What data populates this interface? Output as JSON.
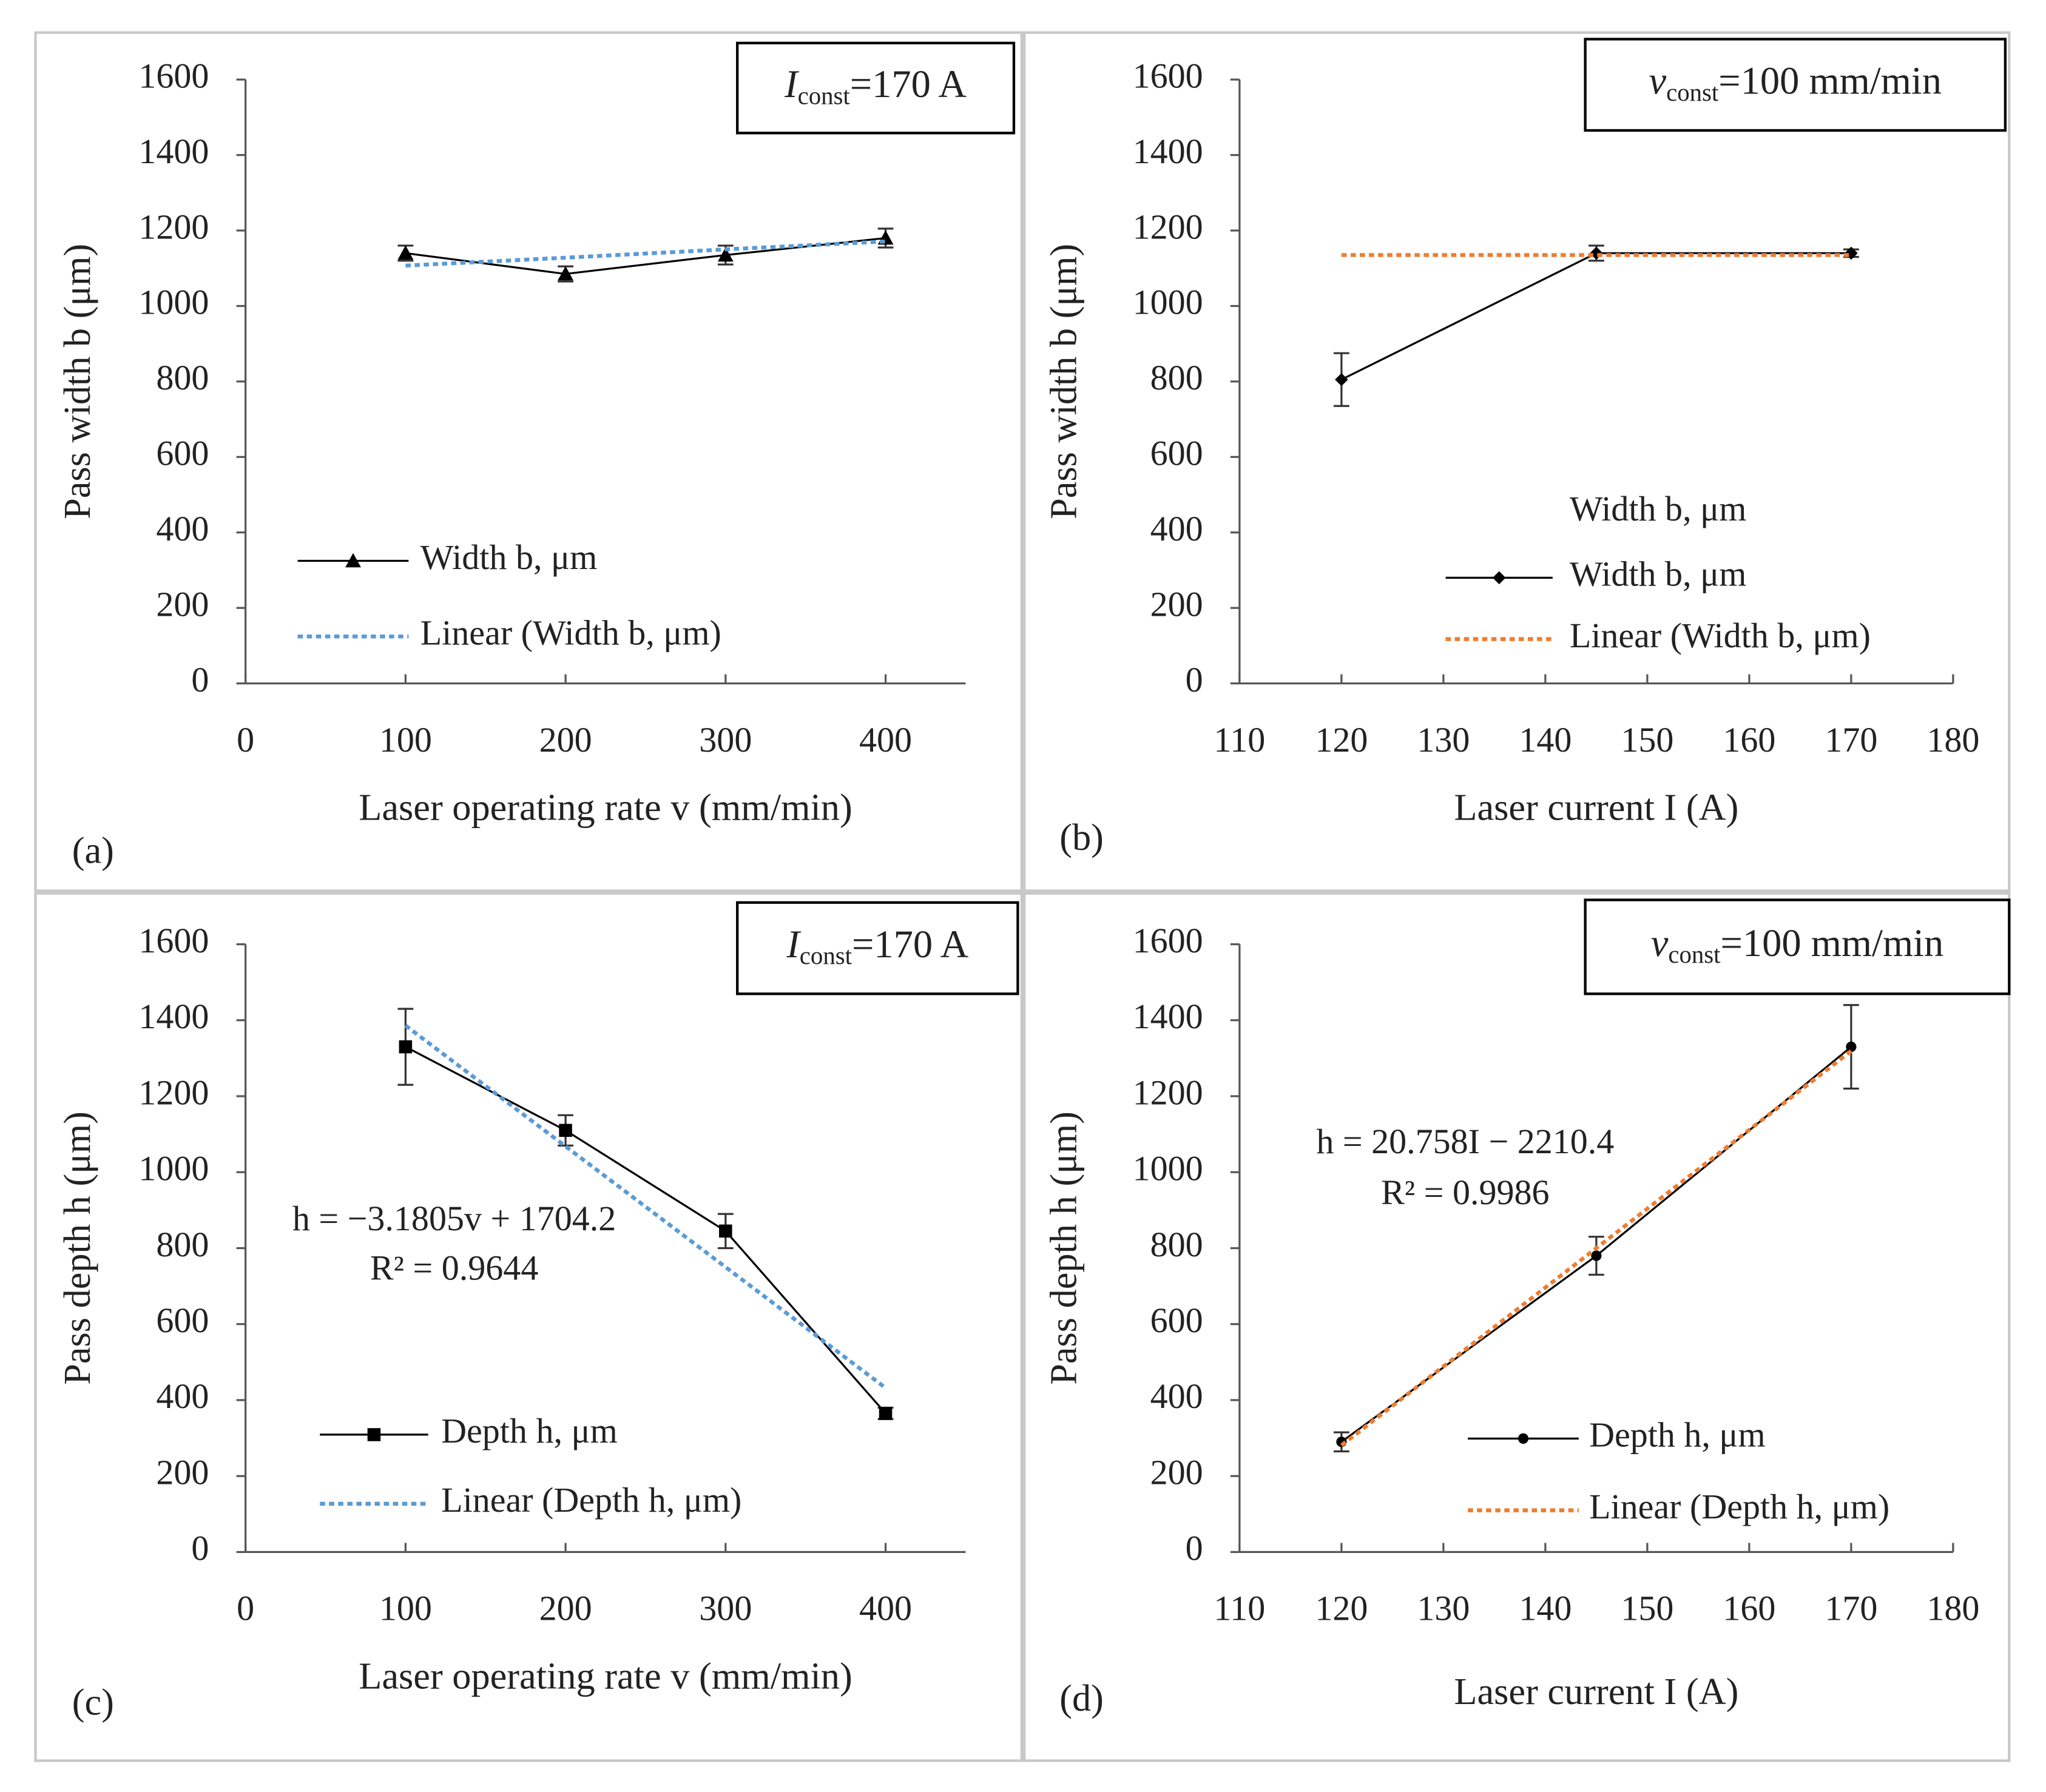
{
  "chart_data": [
    {
      "type": "line",
      "panel": "(a)",
      "ylabel": "Pass width b (μm)",
      "xlabel": "Laser operating rate v (mm/min)",
      "annotation": {
        "symbol": "I",
        "subscript": "const",
        "text": "=170 A"
      },
      "x": [
        100,
        200,
        300,
        400
      ],
      "xlim": [
        0,
        450
      ],
      "xticks": [
        0,
        100,
        200,
        300,
        400
      ],
      "ylim": [
        0,
        1600
      ],
      "yticks": [
        0,
        200,
        400,
        600,
        800,
        1000,
        1200,
        1400,
        1600
      ],
      "series": [
        {
          "name": "Width b, μm",
          "color": "#000000",
          "marker": "triangle",
          "values": [
            1140,
            1085,
            1135,
            1180
          ],
          "errors": [
            20,
            20,
            25,
            25
          ]
        },
        {
          "name": "Linear (Width b, μm)",
          "color": "#5b9bd5",
          "dash": true,
          "values": [
            1107,
            1128,
            1150,
            1171
          ]
        }
      ]
    },
    {
      "type": "line",
      "panel": "(b)",
      "ylabel": "Pass width b (μm)",
      "xlabel": "Laser current I (A)",
      "annotation": {
        "symbol": "v",
        "subscript": "const",
        "text": "=100 mm/min"
      },
      "legend_title": "Width b, μm",
      "x": [
        120,
        145,
        170
      ],
      "xlim": [
        110,
        180
      ],
      "xticks": [
        110,
        120,
        130,
        140,
        150,
        160,
        170,
        180
      ],
      "ylim": [
        0,
        1600
      ],
      "yticks": [
        0,
        200,
        400,
        600,
        800,
        1000,
        1200,
        1400,
        1600
      ],
      "series": [
        {
          "name": "Width b, μm",
          "color": "#000000",
          "marker": "diamond",
          "values": [
            805,
            1140,
            1140
          ],
          "errors": [
            70,
            20,
            10
          ]
        },
        {
          "name": "Linear (Width b, μm)",
          "color": "#ed7d31",
          "dash": true,
          "values": [
            1135,
            1135,
            1135
          ]
        }
      ]
    },
    {
      "type": "line",
      "panel": "(c)",
      "ylabel": "Pass depth h (μm)",
      "xlabel": "Laser operating rate v (mm/min)",
      "annotation": {
        "symbol": "I",
        "subscript": "const",
        "text": "=170 A"
      },
      "equation": [
        "h = −3.1805v + 1704.2",
        "R² = 0.9644"
      ],
      "x": [
        100,
        200,
        300,
        400
      ],
      "xlim": [
        0,
        450
      ],
      "xticks": [
        0,
        100,
        200,
        300,
        400
      ],
      "ylim": [
        0,
        1600
      ],
      "yticks": [
        0,
        200,
        400,
        600,
        800,
        1000,
        1200,
        1400,
        1600
      ],
      "series": [
        {
          "name": "Depth h, μm",
          "color": "#000000",
          "marker": "square",
          "values": [
            1330,
            1110,
            845,
            365
          ],
          "errors": [
            100,
            40,
            45,
            15
          ]
        },
        {
          "name": "Linear (Depth h, μm)",
          "color": "#5b9bd5",
          "dash": true,
          "values": [
            1386,
            1068,
            750,
            432
          ]
        }
      ]
    },
    {
      "type": "line",
      "panel": "(d)",
      "ylabel": "Pass depth h (μm)",
      "xlabel": "Laser current I (A)",
      "annotation": {
        "symbol": "v",
        "subscript": "const",
        "text": "=100 mm/min"
      },
      "equation": [
        "h = 20.758I − 2210.4",
        "R² = 0.9986"
      ],
      "x": [
        120,
        145,
        170
      ],
      "xlim": [
        110,
        180
      ],
      "xticks": [
        110,
        120,
        130,
        140,
        150,
        160,
        170,
        180
      ],
      "ylim": [
        0,
        1600
      ],
      "yticks": [
        0,
        200,
        400,
        600,
        800,
        1000,
        1200,
        1400,
        1600
      ],
      "series": [
        {
          "name": "Depth h, μm",
          "color": "#000000",
          "marker": "circle",
          "values": [
            290,
            780,
            1330
          ],
          "errors": [
            25,
            50,
            110
          ]
        },
        {
          "name": "Linear (Depth h, μm)",
          "color": "#ed7d31",
          "dash": true,
          "values": [
            281,
            800,
            1319
          ]
        }
      ]
    }
  ]
}
